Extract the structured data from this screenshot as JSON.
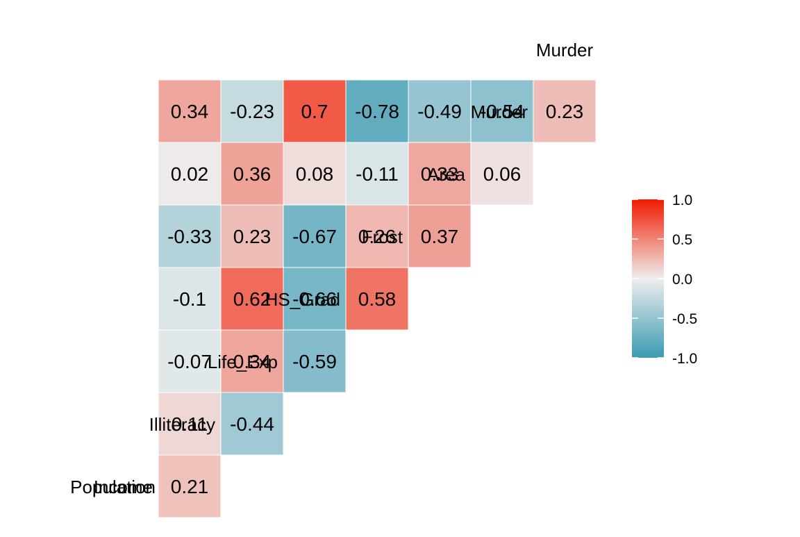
{
  "chart_data": {
    "type": "heatmap",
    "variables": [
      "Population",
      "Income",
      "Illiteracy",
      "Life_Exp",
      "HS_Grad",
      "Frost",
      "Area",
      "Murder"
    ],
    "cells": [
      {
        "row": "Income",
        "col": "Population",
        "value": 0.21
      },
      {
        "row": "Illiteracy",
        "col": "Population",
        "value": 0.11
      },
      {
        "row": "Illiteracy",
        "col": "Income",
        "value": -0.44
      },
      {
        "row": "Life_Exp",
        "col": "Population",
        "value": -0.07
      },
      {
        "row": "Life_Exp",
        "col": "Income",
        "value": 0.34
      },
      {
        "row": "Life_Exp",
        "col": "Illiteracy",
        "value": -0.59
      },
      {
        "row": "HS_Grad",
        "col": "Population",
        "value": -0.1
      },
      {
        "row": "HS_Grad",
        "col": "Income",
        "value": 0.62
      },
      {
        "row": "HS_Grad",
        "col": "Illiteracy",
        "value": -0.66
      },
      {
        "row": "HS_Grad",
        "col": "Life_Exp",
        "value": 0.58
      },
      {
        "row": "Frost",
        "col": "Population",
        "value": -0.33
      },
      {
        "row": "Frost",
        "col": "Income",
        "value": 0.23
      },
      {
        "row": "Frost",
        "col": "Illiteracy",
        "value": -0.67
      },
      {
        "row": "Frost",
        "col": "Life_Exp",
        "value": 0.26
      },
      {
        "row": "Frost",
        "col": "HS_Grad",
        "value": 0.37
      },
      {
        "row": "Area",
        "col": "Population",
        "value": 0.02
      },
      {
        "row": "Area",
        "col": "Income",
        "value": 0.36
      },
      {
        "row": "Area",
        "col": "Illiteracy",
        "value": 0.08
      },
      {
        "row": "Area",
        "col": "Life_Exp",
        "value": -0.11
      },
      {
        "row": "Area",
        "col": "HS_Grad",
        "value": 0.33
      },
      {
        "row": "Area",
        "col": "Frost",
        "value": 0.06
      },
      {
        "row": "Murder",
        "col": "Population",
        "value": 0.34
      },
      {
        "row": "Murder",
        "col": "Income",
        "value": -0.23
      },
      {
        "row": "Murder",
        "col": "Illiteracy",
        "value": 0.7
      },
      {
        "row": "Murder",
        "col": "Life_Exp",
        "value": -0.78
      },
      {
        "row": "Murder",
        "col": "HS_Grad",
        "value": -0.49
      },
      {
        "row": "Murder",
        "col": "Frost",
        "value": -0.54
      },
      {
        "row": "Murder",
        "col": "Area",
        "value": 0.23
      }
    ],
    "color_scale": {
      "low": "#3A9AB2",
      "mid": "#EEEEEE",
      "high": "#F11B00",
      "limits": [
        -1.0,
        1.0
      ],
      "breaks": [
        1.0,
        0.5,
        0.0,
        -0.5,
        -1.0
      ],
      "break_labels": [
        "1.0",
        "0.5",
        "0.0",
        "-0.5",
        "-1.0"
      ]
    },
    "legend_position": "right",
    "grid": false
  }
}
